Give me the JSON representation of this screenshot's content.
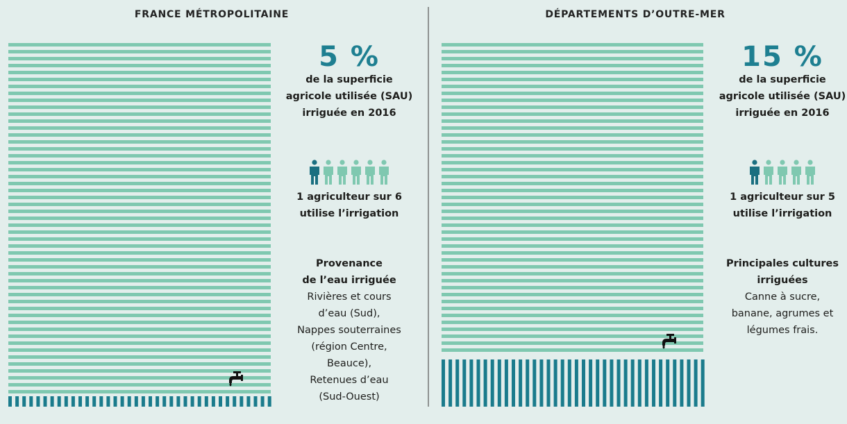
{
  "left": {
    "title": "FRANCE MÉTROPOLITAINE",
    "stat": "5 %",
    "stat_caption": [
      "de la superficie",
      "agricole utilisée (SAU)",
      "irriguée en 2016"
    ],
    "farmers": [
      "1 agriculteur sur 6",
      "utilise l’irrigation"
    ],
    "note_heading": [
      "Provenance",
      "de l’eau irriguée"
    ],
    "note_lines": [
      "Rivières et cours",
      "d’eau (Sud),",
      "Nappes souterraines",
      "(région Centre,",
      "Beauce),",
      "Retenues d’eau",
      "(Sud-Ouest)"
    ]
  },
  "right": {
    "title": "DÉPARTEMENTS D’OUTRE-MER",
    "stat": "15 %",
    "stat_caption": [
      "de la superficie",
      "agricole utilisée (SAU)",
      "irriguée en 2016"
    ],
    "farmers": [
      "1 agriculteur sur 5",
      "utilise l’irrigation"
    ],
    "note_heading": [
      "Principales cultures",
      "irriguées"
    ],
    "note_lines": [
      "Canne à sucre,",
      "banane, agrumes et",
      "légumes frais."
    ]
  }
}
